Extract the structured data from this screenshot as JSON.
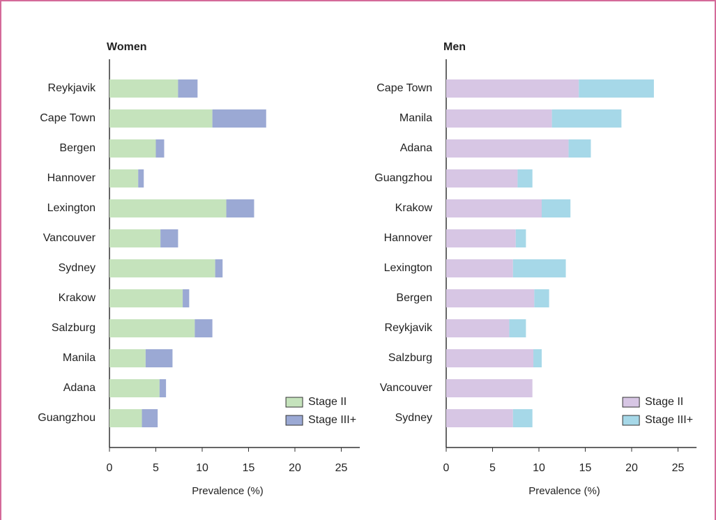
{
  "chart_data": [
    {
      "type": "bar",
      "orientation": "horizontal",
      "stacked": true,
      "title": "Women",
      "x_label": "Prevalence (%)",
      "categories": [
        "Reykjavik",
        "Cape Town",
        "Bergen",
        "Hannover",
        "Lexington",
        "Vancouver",
        "Sydney",
        "Krakow",
        "Salzburg",
        "Manila",
        "Adana",
        "Guangzhou"
      ],
      "series": [
        {
          "name": "Stage II",
          "color": "#c5e3bc",
          "values": [
            7.4,
            11.1,
            5.0,
            3.1,
            12.6,
            5.5,
            11.4,
            7.9,
            9.2,
            3.9,
            5.4,
            3.5
          ]
        },
        {
          "name": "Stage III+",
          "color": "#9ba9d4",
          "values": [
            2.1,
            5.8,
            0.9,
            0.6,
            3.0,
            1.9,
            0.8,
            0.7,
            1.9,
            2.9,
            0.7,
            1.7
          ]
        }
      ],
      "xlim": [
        0,
        27
      ],
      "xticks": [
        0,
        5,
        10,
        15,
        20,
        25
      ],
      "legend": "lower right"
    },
    {
      "type": "bar",
      "orientation": "horizontal",
      "stacked": true,
      "title": "Men",
      "x_label": "Prevalence (%)",
      "categories": [
        "Cape Town",
        "Manila",
        "Adana",
        "Guangzhou",
        "Krakow",
        "Hannover",
        "Lexington",
        "Bergen",
        "Reykjavik",
        "Salzburg",
        "Vancouver",
        "Sydney"
      ],
      "series": [
        {
          "name": "Stage II",
          "color": "#d7c6e4",
          "values": [
            14.3,
            11.4,
            13.2,
            7.7,
            10.3,
            7.5,
            7.2,
            9.5,
            6.8,
            9.4,
            9.3,
            7.2
          ]
        },
        {
          "name": "Stage III+",
          "color": "#a6d8e8",
          "values": [
            8.1,
            7.5,
            2.4,
            1.6,
            3.1,
            1.1,
            5.7,
            1.6,
            1.8,
            0.9,
            0,
            2.1
          ]
        }
      ],
      "xlim": [
        0,
        27
      ],
      "xticks": [
        0,
        5,
        10,
        15,
        20,
        25
      ],
      "legend": "lower right"
    }
  ]
}
